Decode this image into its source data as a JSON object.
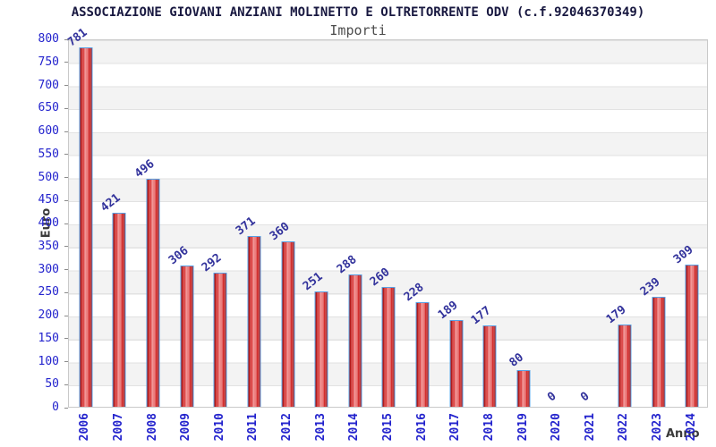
{
  "header": {
    "title": "ASSOCIAZIONE GIOVANI ANZIANI MOLINETTO E OLTRETORRENTE ODV (c.f.92046370349)",
    "subtitle": "Importi"
  },
  "chart_data": {
    "type": "bar",
    "title": "ASSOCIAZIONE GIOVANI ANZIANI MOLINETTO E OLTRETORRENTE ODV (c.f.92046370349)",
    "subtitle": "Importi",
    "xlabel": "Anno",
    "ylabel": "Euro",
    "categories": [
      "2006",
      "2007",
      "2008",
      "2009",
      "2010",
      "2011",
      "2012",
      "2013",
      "2014",
      "2015",
      "2016",
      "2017",
      "2018",
      "2019",
      "2020",
      "2021",
      "2022",
      "2023",
      "2024"
    ],
    "values": [
      781,
      421,
      496,
      306,
      292,
      371,
      360,
      251,
      288,
      260,
      228,
      189,
      177,
      80,
      0,
      0,
      179,
      239,
      309
    ],
    "ylim": [
      0,
      800
    ],
    "ytick_step": 50,
    "grid": true,
    "legend": "none",
    "band_colors": [
      "#f3f3f3",
      "#ffffff"
    ],
    "bar_color": "#d42a2a",
    "bar_border_color": "#57a0e4",
    "value_label_color": "#31319b",
    "tick_label_color": "#2323cd",
    "title_color": "#181840",
    "axis_name_color": "#3a3a3a"
  }
}
